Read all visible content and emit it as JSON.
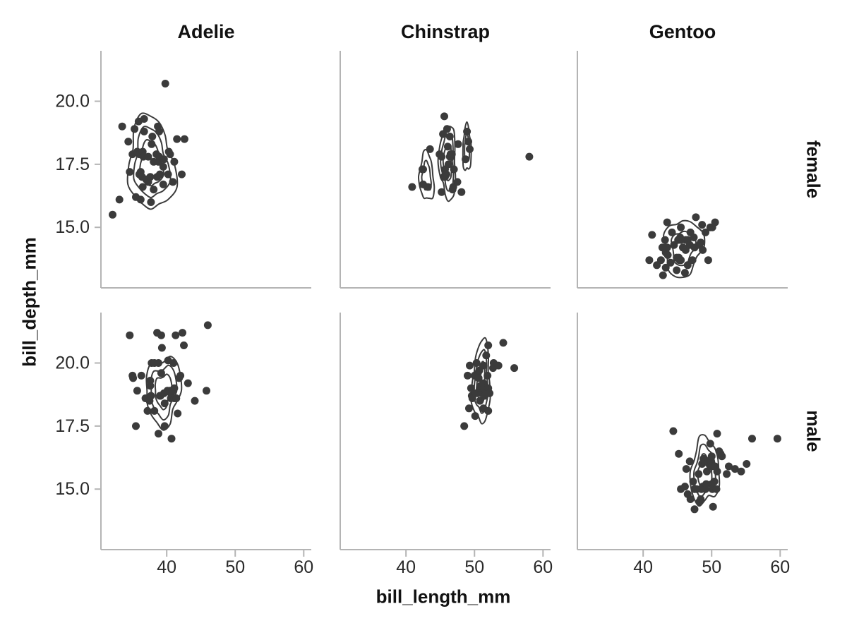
{
  "chart_data": {
    "type": "scatter",
    "title": "",
    "xlabel": "bill_length_mm",
    "ylabel": "bill_depth_mm",
    "col_facets": [
      "Adelie",
      "Chinstrap",
      "Gentoo"
    ],
    "row_facets": [
      "female",
      "male"
    ],
    "xlim": [
      30.4,
      61.1
    ],
    "x_ticks": [
      40,
      50,
      60
    ],
    "x_tick_labels": [
      "40",
      "50",
      "60"
    ],
    "ylim": [
      12.6,
      22.0
    ],
    "y_ticks": [
      15.0,
      17.5,
      20.0
    ],
    "y_tick_labels": [
      "15.0",
      "17.5",
      "20.0"
    ],
    "grid": "off",
    "legend": "none",
    "marker": {
      "shape": "circle",
      "radius_px": 5.5,
      "color": "#3b3b3b"
    },
    "contour_color": "#3b3b3b",
    "axis_color": "#b4b4b4",
    "tick_text_color": "#2a2a2a",
    "facets": [
      {
        "col": "Adelie",
        "row": "female",
        "points": [
          [
            32.1,
            15.5
          ],
          [
            33.1,
            16.1
          ],
          [
            33.5,
            19.0
          ],
          [
            34.4,
            18.4
          ],
          [
            34.6,
            17.2
          ],
          [
            35.0,
            17.9
          ],
          [
            35.3,
            18.9
          ],
          [
            35.5,
            16.2
          ],
          [
            35.7,
            18.0
          ],
          [
            35.9,
            19.2
          ],
          [
            36.0,
            17.1
          ],
          [
            36.0,
            17.9
          ],
          [
            36.2,
            16.1
          ],
          [
            36.2,
            17.2
          ],
          [
            36.4,
            17.0
          ],
          [
            36.5,
            16.6
          ],
          [
            36.5,
            18.0
          ],
          [
            36.6,
            17.8
          ],
          [
            36.7,
            18.8
          ],
          [
            36.7,
            19.3
          ],
          [
            37.0,
            16.9
          ],
          [
            37.3,
            16.8
          ],
          [
            37.3,
            17.8
          ],
          [
            37.6,
            17.0
          ],
          [
            37.7,
            16.0
          ],
          [
            37.8,
            18.3
          ],
          [
            37.9,
            18.6
          ],
          [
            38.1,
            16.5
          ],
          [
            38.1,
            17.6
          ],
          [
            38.5,
            17.9
          ],
          [
            38.6,
            17.0
          ],
          [
            38.7,
            19.0
          ],
          [
            38.8,
            17.6
          ],
          [
            38.9,
            17.8
          ],
          [
            38.9,
            18.8
          ],
          [
            39.0,
            17.1
          ],
          [
            39.5,
            16.7
          ],
          [
            39.5,
            17.4
          ],
          [
            39.6,
            17.7
          ],
          [
            39.8,
            20.7
          ],
          [
            40.2,
            17.1
          ],
          [
            40.3,
            18.0
          ],
          [
            40.5,
            17.9
          ],
          [
            40.9,
            16.8
          ],
          [
            41.1,
            17.6
          ],
          [
            41.5,
            18.5
          ],
          [
            42.2,
            17.1
          ],
          [
            42.6,
            18.5
          ]
        ],
        "contours": [
          {
            "cx": 37.7,
            "cy": 17.5,
            "rx": 3.3,
            "ry": 1.85,
            "levels": 3
          }
        ]
      },
      {
        "col": "Chinstrap",
        "row": "female",
        "points": [
          [
            40.9,
            16.6
          ],
          [
            42.4,
            17.3
          ],
          [
            42.5,
            16.7
          ],
          [
            42.5,
            17.3
          ],
          [
            43.2,
            16.6
          ],
          [
            43.5,
            18.1
          ],
          [
            44.9,
            17.9
          ],
          [
            45.2,
            16.4
          ],
          [
            45.2,
            17.8
          ],
          [
            45.4,
            18.7
          ],
          [
            45.5,
            17.0
          ],
          [
            45.6,
            19.4
          ],
          [
            45.7,
            17.0
          ],
          [
            45.7,
            17.3
          ],
          [
            45.9,
            17.1
          ],
          [
            46.0,
            18.9
          ],
          [
            46.1,
            18.2
          ],
          [
            46.2,
            17.5
          ],
          [
            46.4,
            17.8
          ],
          [
            46.4,
            18.6
          ],
          [
            46.5,
            17.9
          ],
          [
            46.6,
            17.8
          ],
          [
            46.7,
            17.9
          ],
          [
            46.8,
            16.5
          ],
          [
            46.9,
            16.6
          ],
          [
            47.0,
            17.3
          ],
          [
            47.5,
            16.8
          ],
          [
            47.6,
            18.3
          ],
          [
            48.1,
            16.4
          ],
          [
            48.7,
            17.7
          ],
          [
            48.9,
            18.8
          ],
          [
            49.1,
            18.4
          ],
          [
            49.3,
            18.1
          ],
          [
            58.0,
            17.8
          ]
        ],
        "contours": [
          {
            "cx": 43.0,
            "cy": 17.0,
            "rx": 1.05,
            "ry": 0.95,
            "levels": 2
          },
          {
            "cx": 46.1,
            "cy": 17.6,
            "rx": 1.15,
            "ry": 1.55,
            "levels": 3
          },
          {
            "cx": 48.9,
            "cy": 18.1,
            "rx": 0.65,
            "ry": 0.85,
            "levels": 2
          }
        ]
      },
      {
        "col": "Gentoo",
        "row": "female",
        "points": [
          [
            40.9,
            13.7
          ],
          [
            41.3,
            14.7
          ],
          [
            42.0,
            13.5
          ],
          [
            42.6,
            13.7
          ],
          [
            42.8,
            14.2
          ],
          [
            42.9,
            13.1
          ],
          [
            43.2,
            14.5
          ],
          [
            43.3,
            13.4
          ],
          [
            43.3,
            14.0
          ],
          [
            43.5,
            14.2
          ],
          [
            43.5,
            15.2
          ],
          [
            43.6,
            13.9
          ],
          [
            44.0,
            13.6
          ],
          [
            44.2,
            14.8
          ],
          [
            44.5,
            14.3
          ],
          [
            44.9,
            13.3
          ],
          [
            44.9,
            13.8
          ],
          [
            45.1,
            14.5
          ],
          [
            45.2,
            13.8
          ],
          [
            45.3,
            13.7
          ],
          [
            45.4,
            14.6
          ],
          [
            45.5,
            13.7
          ],
          [
            45.5,
            14.5
          ],
          [
            45.5,
            15.0
          ],
          [
            45.8,
            14.2
          ],
          [
            46.1,
            13.2
          ],
          [
            46.2,
            14.1
          ],
          [
            46.2,
            14.5
          ],
          [
            46.5,
            13.5
          ],
          [
            46.5,
            14.5
          ],
          [
            46.8,
            14.3
          ],
          [
            46.9,
            14.8
          ],
          [
            47.2,
            13.7
          ],
          [
            47.4,
            14.6
          ],
          [
            47.5,
            14.2
          ],
          [
            47.7,
            15.4
          ],
          [
            48.2,
            14.3
          ],
          [
            48.4,
            14.4
          ],
          [
            48.6,
            15.1
          ],
          [
            48.7,
            14.1
          ],
          [
            49.1,
            14.8
          ],
          [
            49.5,
            13.7
          ],
          [
            49.8,
            15.0
          ],
          [
            50.1,
            15.0
          ],
          [
            50.5,
            15.2
          ]
        ],
        "contours": [
          {
            "cx": 45.8,
            "cy": 14.2,
            "rx": 2.7,
            "ry": 1.15,
            "levels": 2
          }
        ]
      },
      {
        "col": "Adelie",
        "row": "male",
        "points": [
          [
            34.6,
            21.1
          ],
          [
            35.0,
            19.5
          ],
          [
            35.1,
            19.4
          ],
          [
            35.5,
            17.5
          ],
          [
            35.7,
            18.9
          ],
          [
            36.3,
            19.5
          ],
          [
            36.9,
            18.6
          ],
          [
            37.2,
            18.1
          ],
          [
            37.5,
            18.5
          ],
          [
            37.6,
            19.1
          ],
          [
            37.6,
            19.3
          ],
          [
            37.7,
            18.7
          ],
          [
            37.8,
            20.0
          ],
          [
            38.2,
            18.1
          ],
          [
            38.2,
            20.0
          ],
          [
            38.6,
            21.2
          ],
          [
            38.8,
            17.2
          ],
          [
            38.8,
            20.0
          ],
          [
            39.0,
            18.7
          ],
          [
            39.1,
            18.7
          ],
          [
            39.2,
            19.6
          ],
          [
            39.2,
            21.1
          ],
          [
            39.3,
            20.6
          ],
          [
            39.6,
            18.8
          ],
          [
            39.7,
            17.5
          ],
          [
            39.7,
            18.4
          ],
          [
            40.1,
            18.9
          ],
          [
            40.2,
            20.1
          ],
          [
            40.5,
            18.9
          ],
          [
            40.6,
            18.6
          ],
          [
            40.6,
            18.8
          ],
          [
            40.7,
            17.0
          ],
          [
            40.8,
            18.9
          ],
          [
            40.9,
            18.9
          ],
          [
            41.0,
            20.0
          ],
          [
            41.1,
            18.6
          ],
          [
            41.1,
            19.0
          ],
          [
            41.3,
            21.1
          ],
          [
            41.4,
            18.6
          ],
          [
            41.6,
            18.0
          ],
          [
            41.8,
            19.4
          ],
          [
            42.0,
            19.5
          ],
          [
            42.3,
            21.2
          ],
          [
            42.5,
            20.7
          ],
          [
            43.1,
            19.2
          ],
          [
            44.1,
            18.5
          ],
          [
            45.8,
            18.9
          ],
          [
            46.0,
            21.5
          ]
        ],
        "contours": [
          {
            "cx": 39.5,
            "cy": 18.9,
            "rx": 2.5,
            "ry": 1.35,
            "levels": 3
          }
        ]
      },
      {
        "col": "Chinstrap",
        "row": "male",
        "points": [
          [
            48.5,
            17.5
          ],
          [
            49.0,
            19.5
          ],
          [
            49.2,
            18.2
          ],
          [
            49.3,
            19.9
          ],
          [
            49.5,
            19.0
          ],
          [
            49.6,
            18.7
          ],
          [
            49.7,
            18.6
          ],
          [
            50.0,
            19.5
          ],
          [
            50.1,
            17.9
          ],
          [
            50.2,
            18.8
          ],
          [
            50.3,
            20.0
          ],
          [
            50.5,
            19.6
          ],
          [
            50.6,
            19.4
          ],
          [
            50.7,
            19.7
          ],
          [
            50.8,
            18.5
          ],
          [
            50.8,
            19.0
          ],
          [
            50.9,
            19.1
          ],
          [
            51.0,
            18.8
          ],
          [
            51.3,
            18.2
          ],
          [
            51.3,
            19.2
          ],
          [
            51.3,
            19.9
          ],
          [
            51.4,
            19.0
          ],
          [
            51.5,
            18.7
          ],
          [
            51.7,
            20.3
          ],
          [
            51.9,
            19.5
          ],
          [
            52.0,
            18.1
          ],
          [
            52.0,
            19.0
          ],
          [
            52.0,
            20.7
          ],
          [
            52.2,
            18.8
          ],
          [
            52.7,
            19.8
          ],
          [
            52.8,
            20.0
          ],
          [
            53.5,
            19.9
          ],
          [
            54.2,
            20.8
          ],
          [
            55.8,
            19.8
          ]
        ],
        "contours": [
          {
            "cx": 51.0,
            "cy": 19.2,
            "rx": 1.35,
            "ry": 1.55,
            "levels": 3
          }
        ]
      },
      {
        "col": "Gentoo",
        "row": "male",
        "points": [
          [
            44.4,
            17.3
          ],
          [
            45.2,
            16.4
          ],
          [
            45.5,
            15.0
          ],
          [
            46.1,
            15.1
          ],
          [
            46.3,
            15.8
          ],
          [
            46.5,
            14.8
          ],
          [
            46.8,
            16.1
          ],
          [
            46.9,
            14.6
          ],
          [
            47.3,
            15.3
          ],
          [
            47.5,
            14.2
          ],
          [
            47.5,
            15.0
          ],
          [
            47.8,
            15.0
          ],
          [
            48.1,
            15.6
          ],
          [
            48.2,
            14.5
          ],
          [
            48.4,
            14.6
          ],
          [
            48.5,
            15.0
          ],
          [
            48.6,
            16.0
          ],
          [
            48.7,
            15.1
          ],
          [
            48.8,
            16.2
          ],
          [
            49.0,
            16.1
          ],
          [
            49.1,
            15.0
          ],
          [
            49.2,
            15.2
          ],
          [
            49.3,
            15.7
          ],
          [
            49.5,
            16.1
          ],
          [
            49.6,
            16.0
          ],
          [
            49.8,
            15.9
          ],
          [
            49.8,
            16.8
          ],
          [
            49.9,
            16.1
          ],
          [
            50.0,
            15.2
          ],
          [
            50.0,
            15.9
          ],
          [
            50.0,
            16.3
          ],
          [
            50.1,
            15.0
          ],
          [
            50.2,
            14.3
          ],
          [
            50.4,
            15.3
          ],
          [
            50.5,
            15.9
          ],
          [
            50.7,
            15.0
          ],
          [
            50.8,
            15.7
          ],
          [
            50.8,
            17.2
          ],
          [
            51.1,
            16.5
          ],
          [
            51.3,
            16.4
          ],
          [
            51.5,
            16.3
          ],
          [
            52.2,
            15.6
          ],
          [
            52.5,
            15.9
          ],
          [
            53.4,
            15.8
          ],
          [
            54.3,
            15.7
          ],
          [
            55.1,
            16.0
          ],
          [
            55.9,
            17.0
          ],
          [
            59.6,
            17.0
          ]
        ],
        "contours": [
          {
            "cx": 49.0,
            "cy": 15.7,
            "rx": 2.0,
            "ry": 1.35,
            "levels": 3
          }
        ]
      }
    ]
  }
}
